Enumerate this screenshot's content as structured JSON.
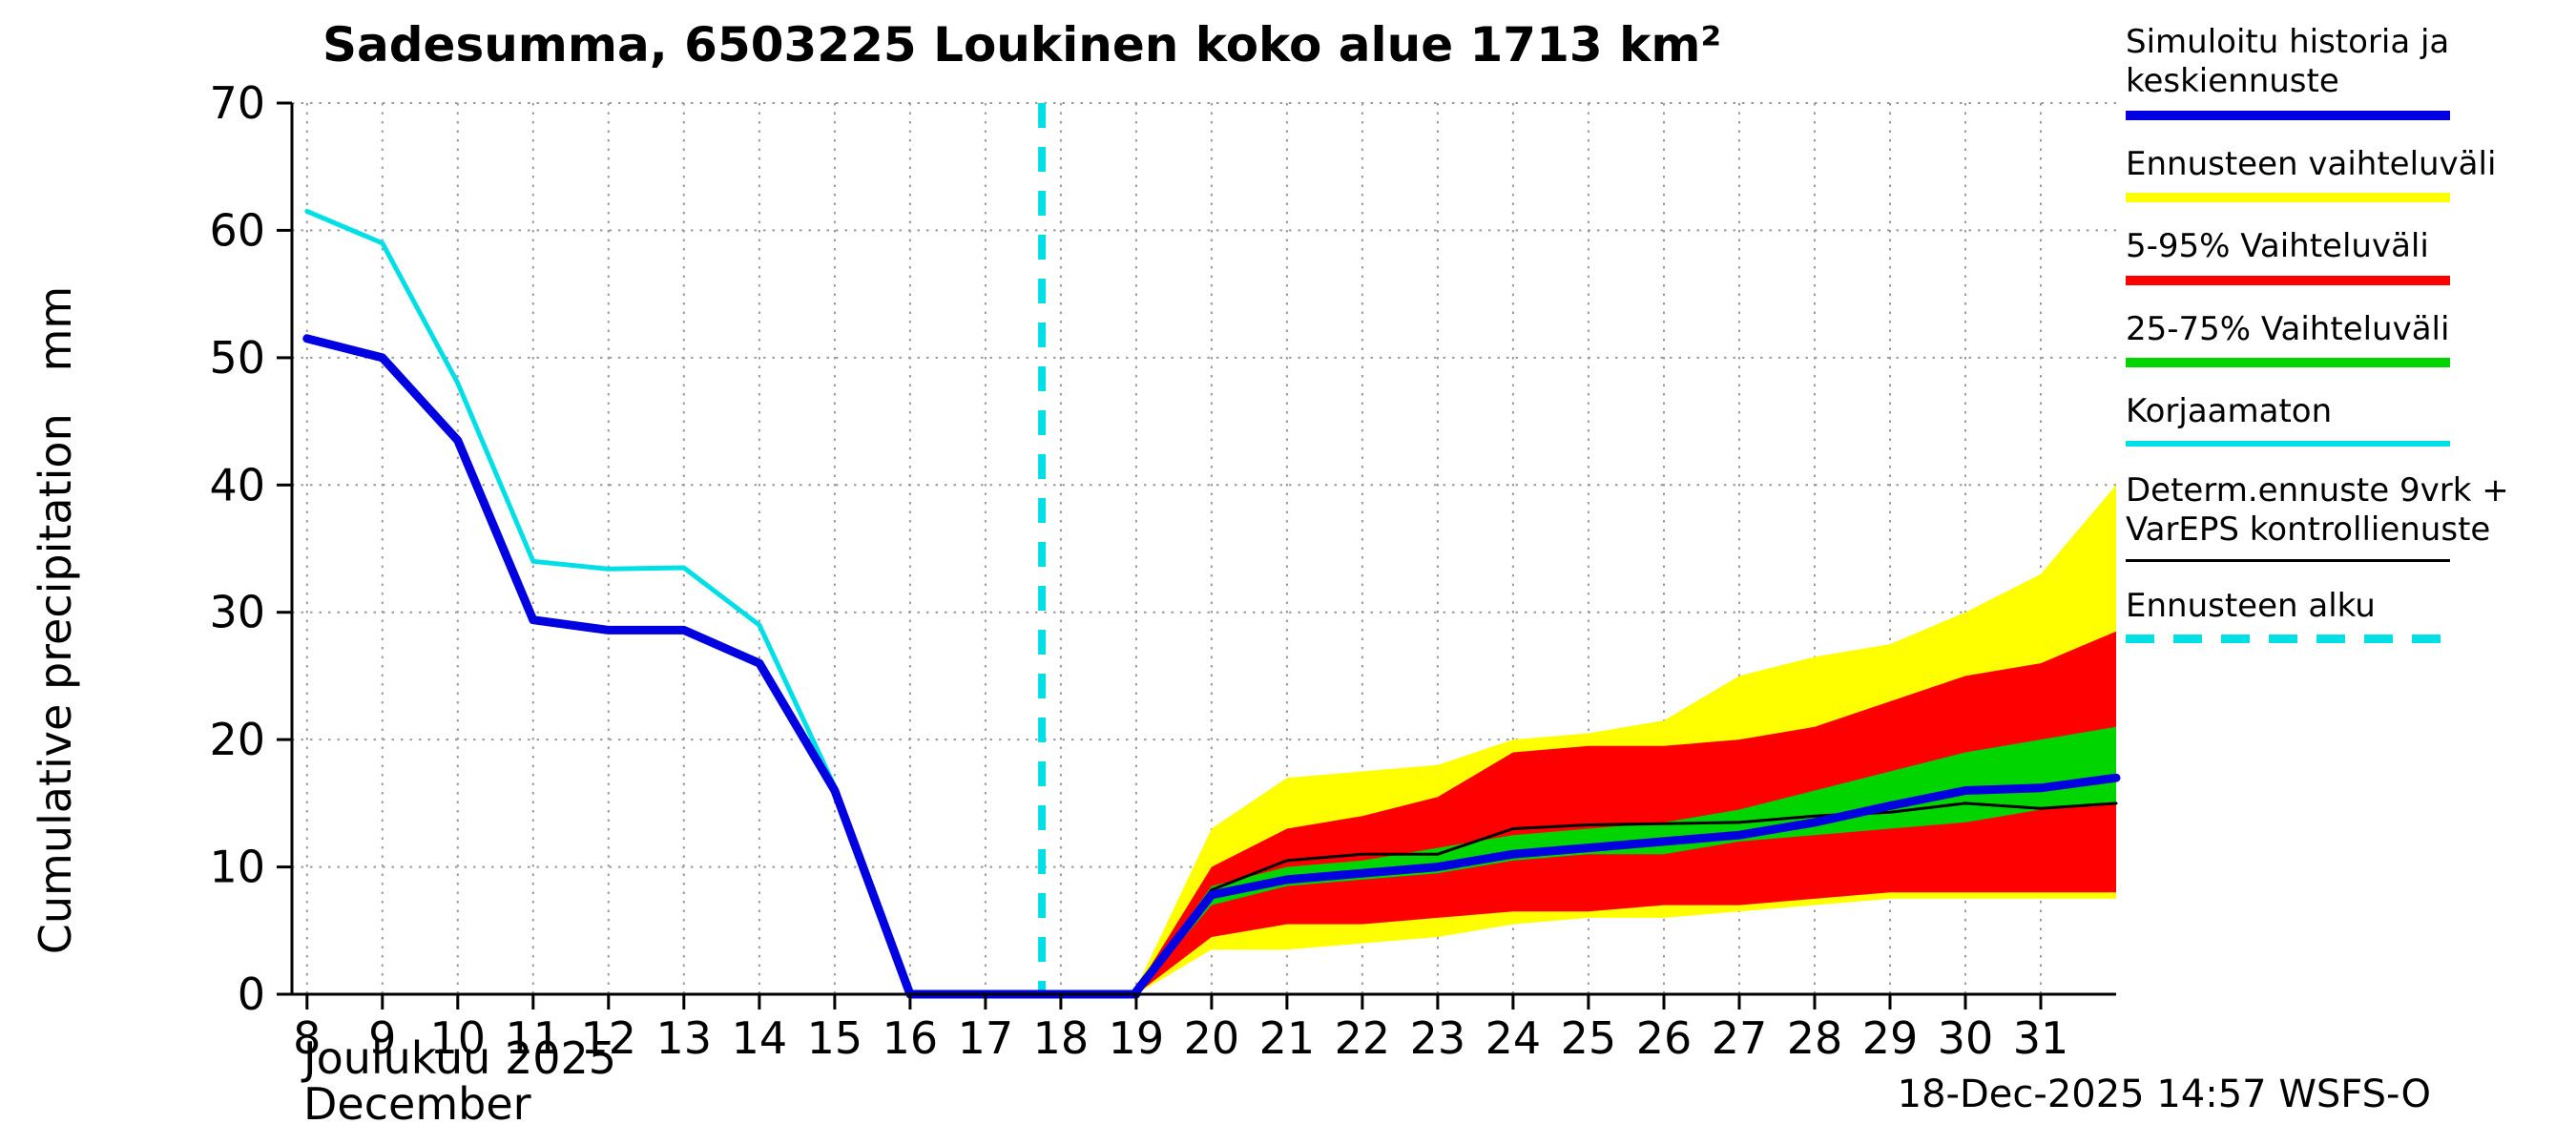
{
  "title": "Sadesumma, 6503225 Loukinen koko alue 1713 km²",
  "y_axis_label": "Cumulative precipitation   mm",
  "x_axis": {
    "month_label": "Joulukuu 2025",
    "month_label_en": "December"
  },
  "footer": "18-Dec-2025 14:57 WSFS-O",
  "colors": {
    "history_blue": "#0000e0",
    "range_yellow": "#ffff00",
    "range_red": "#ff0000",
    "range_green": "#00d500",
    "uncorrected_cyan": "#00dfe6",
    "determ_black": "#000000",
    "grid_gray": "#999999"
  },
  "legend": {
    "items": [
      {
        "label": "Simuloitu historia ja keskiennuste",
        "color": "#0000e0",
        "thickness": 10
      },
      {
        "label": "Ennusteen vaihteluväli",
        "color": "#ffff00",
        "thickness": 10
      },
      {
        "label": "5-95% Vaihteluväli",
        "color": "#ff0000",
        "thickness": 10
      },
      {
        "label": "25-75% Vaihteluväli",
        "color": "#00d500",
        "thickness": 10
      },
      {
        "label": "Korjaamaton",
        "color": "#00dfe6",
        "thickness": 6
      },
      {
        "label": "Determ.ennuste 9vrk + VarEPS kontrollienuste",
        "color": "#000000",
        "thickness": 3
      },
      {
        "label": "Ennusteen alku",
        "color": "#00dfe6",
        "thickness": 9,
        "dash": [
          30,
          20
        ]
      }
    ]
  },
  "chart_data": {
    "type": "line",
    "title": "Sadesumma, 6503225 Loukinen koko alue 1713 km²",
    "xlabel": "Joulukuu 2025 / December",
    "ylabel": "Cumulative precipitation (mm)",
    "xlim": [
      7.8,
      32.0
    ],
    "ylim": [
      0,
      70
    ],
    "xticks": [
      8,
      9,
      10,
      11,
      12,
      13,
      14,
      15,
      16,
      17,
      18,
      19,
      20,
      21,
      22,
      23,
      24,
      25,
      26,
      27,
      28,
      29,
      30,
      31
    ],
    "yticks": [
      0,
      10,
      20,
      30,
      40,
      50,
      60,
      70
    ],
    "grid": true,
    "legend_position": "outside-right",
    "forecast_start_x": 17.75,
    "forecast_start_color": "#00dfe6",
    "bands": [
      {
        "name": "ennusteen-vaihteluvali",
        "label": "Ennusteen vaihteluväli",
        "color": "#ffff00",
        "x": [
          19,
          20,
          21,
          22,
          23,
          24,
          25,
          26,
          27,
          28,
          29,
          30,
          31,
          32
        ],
        "low": [
          0,
          3.5,
          3.5,
          4,
          4.5,
          5.5,
          6,
          6,
          6.5,
          7,
          7.5,
          7.5,
          7.5,
          7.5
        ],
        "high": [
          0.5,
          13,
          17,
          17.5,
          18,
          20,
          20.5,
          21.5,
          25,
          26.5,
          27.5,
          30,
          33,
          40
        ]
      },
      {
        "name": "5-95-vaihteluvali",
        "label": "5-95% Vaihteluväli",
        "color": "#ff0000",
        "x": [
          19,
          20,
          21,
          22,
          23,
          24,
          25,
          26,
          27,
          28,
          29,
          30,
          31,
          32
        ],
        "low": [
          0,
          4.5,
          5.5,
          5.5,
          6,
          6.5,
          6.5,
          7,
          7,
          7.5,
          8,
          8,
          8,
          8
        ],
        "high": [
          0.4,
          10,
          13,
          14,
          15.5,
          19,
          19.5,
          19.5,
          20,
          21,
          23,
          25,
          26,
          28.5
        ]
      },
      {
        "name": "25-75-vaihteluvali",
        "label": "25-75% Vaihteluväli",
        "color": "#00d500",
        "x": [
          19,
          20,
          21,
          22,
          23,
          24,
          25,
          26,
          27,
          28,
          29,
          30,
          31,
          32
        ],
        "low": [
          0.1,
          7,
          8.5,
          9,
          9.5,
          10.5,
          11,
          11,
          12,
          12.5,
          13,
          13.5,
          14.5,
          15
        ],
        "high": [
          0.3,
          8.5,
          10,
          10.5,
          11.5,
          12.5,
          13,
          13.5,
          14.5,
          16,
          17.5,
          19,
          20,
          21
        ]
      }
    ],
    "series": [
      {
        "name": "korjaamaton",
        "label": "Korjaamaton",
        "color": "#00dfe6",
        "width": 5,
        "x": [
          8,
          9,
          10,
          11,
          12,
          13,
          14,
          15,
          16
        ],
        "y": [
          61.5,
          59,
          48,
          34,
          33.4,
          33.5,
          29,
          16.3,
          0
        ]
      },
      {
        "name": "determ-ennuste",
        "label": "Determ.ennuste 9vrk + VarEPS kontrollienuste",
        "color": "#000000",
        "width": 3,
        "x": [
          19,
          20,
          21,
          22,
          23,
          24,
          25,
          26,
          27,
          28,
          29,
          30,
          31,
          32
        ],
        "y": [
          0.2,
          8.2,
          10.5,
          11,
          11,
          13,
          13.3,
          13.4,
          13.5,
          14,
          14.3,
          15,
          14.6,
          15
        ]
      },
      {
        "name": "simuloitu-historia",
        "label": "Simuloitu historia",
        "color": "#0000e0",
        "width": 9,
        "x": [
          8,
          9,
          10,
          11,
          12,
          13,
          14,
          15,
          16,
          17,
          18,
          19
        ],
        "y": [
          51.5,
          50,
          43.5,
          29.4,
          28.6,
          28.6,
          26,
          16,
          0,
          0,
          0,
          0
        ]
      },
      {
        "name": "keskiennuste",
        "label": "Keskiennuste",
        "color": "#0000e0",
        "width": 9,
        "x": [
          19,
          20,
          21,
          22,
          23,
          24,
          25,
          26,
          27,
          28,
          29,
          30,
          31,
          32
        ],
        "y": [
          0.2,
          7.8,
          9,
          9.5,
          10,
          11,
          11.5,
          12,
          12.5,
          13.5,
          14.8,
          16,
          16.2,
          17
        ]
      }
    ]
  }
}
